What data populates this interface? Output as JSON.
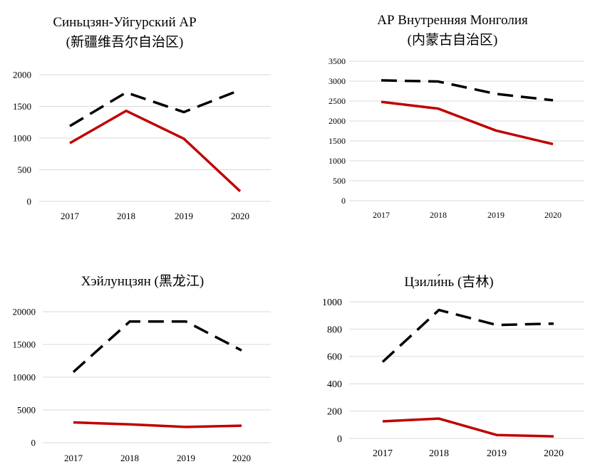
{
  "chart_data": [
    {
      "type": "line",
      "title": "Синьцзян-Уйгурский АР",
      "subtitle": "(新疆维吾尔自治区)",
      "categories": [
        "2017",
        "2018",
        "2019",
        "2020"
      ],
      "ylim": [
        0,
        2000
      ],
      "yticks": [
        "0",
        "500",
        "1000",
        "1500",
        "2000"
      ],
      "grid": true,
      "series": [
        {
          "style": "dashed",
          "color": "#000000",
          "values": [
            1190,
            1720,
            1410,
            1760
          ]
        },
        {
          "style": "solid",
          "color": "#c00000",
          "values": [
            920,
            1430,
            990,
            160
          ]
        }
      ]
    },
    {
      "type": "line",
      "title": "АР Внутренняя Монголия",
      "subtitle": "(内蒙古自治区)",
      "categories": [
        "2017",
        "2018",
        "2019",
        "2020"
      ],
      "ylim": [
        0,
        3500
      ],
      "yticks": [
        "0",
        "500",
        "1000",
        "1500",
        "2000",
        "2500",
        "3000",
        "3500"
      ],
      "grid": true,
      "series": [
        {
          "style": "dashed",
          "color": "#000000",
          "values": [
            3020,
            2990,
            2680,
            2520
          ]
        },
        {
          "style": "solid",
          "color": "#c00000",
          "values": [
            2480,
            2310,
            1760,
            1420
          ]
        }
      ]
    },
    {
      "type": "line",
      "title": "Хэйлунцзян (黑龙江)",
      "subtitle": "",
      "categories": [
        "2017",
        "2018",
        "2019",
        "2020"
      ],
      "ylim": [
        0,
        20000
      ],
      "yticks": [
        "0",
        "5000",
        "10000",
        "15000",
        "20000"
      ],
      "grid": true,
      "series": [
        {
          "style": "dashed",
          "color": "#000000",
          "values": [
            10800,
            18500,
            18500,
            14100
          ]
        },
        {
          "style": "solid",
          "color": "#c00000",
          "values": [
            3100,
            2800,
            2400,
            2600
          ]
        }
      ]
    },
    {
      "type": "line",
      "title": "Цзили́нь (吉林)",
      "subtitle": "",
      "categories": [
        "2017",
        "2018",
        "2019",
        "2020"
      ],
      "ylim": [
        0,
        1000
      ],
      "yticks": [
        "0",
        "200",
        "400",
        "600",
        "800",
        "1000"
      ],
      "grid": true,
      "series": [
        {
          "style": "dashed",
          "color": "#000000",
          "values": [
            560,
            940,
            830,
            840
          ]
        },
        {
          "style": "solid",
          "color": "#c00000",
          "values": [
            125,
            145,
            25,
            15
          ]
        }
      ]
    }
  ]
}
